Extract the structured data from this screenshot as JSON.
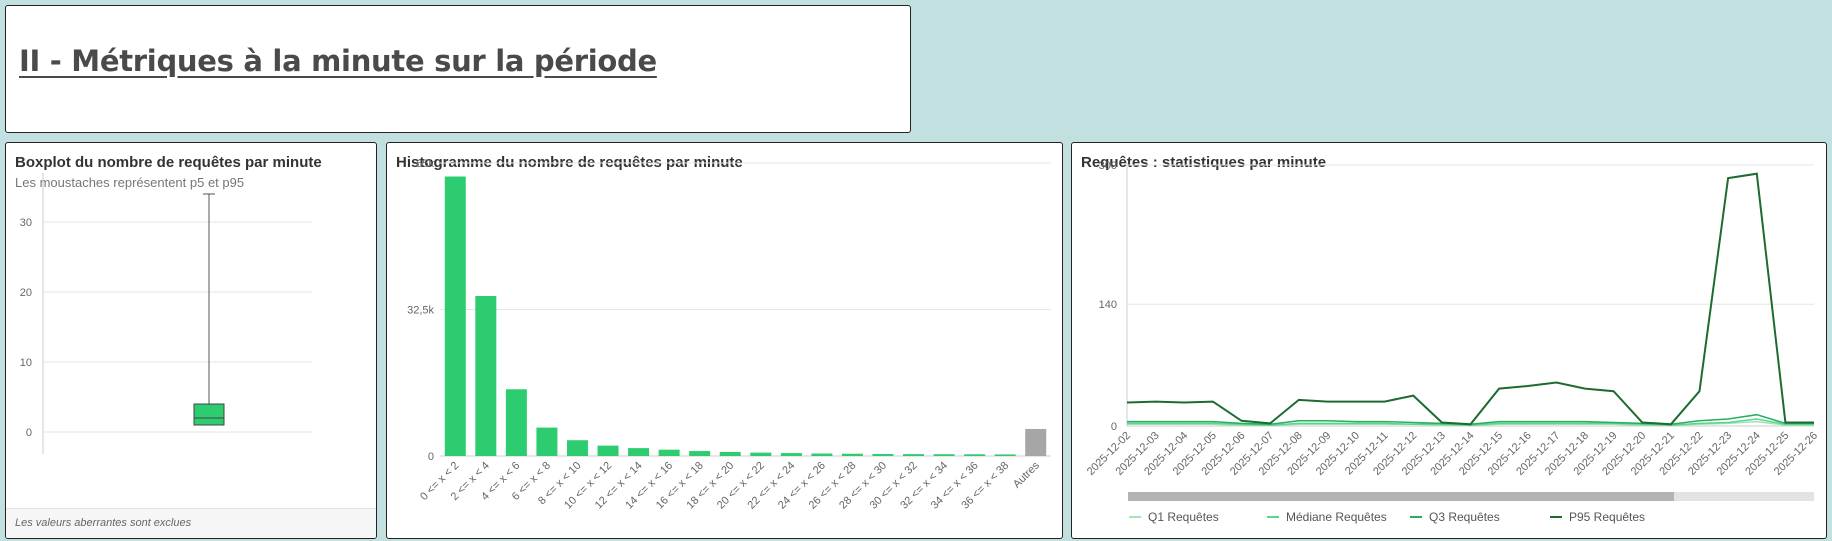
{
  "section": {
    "title": "II - Métriques à la minute sur la période"
  },
  "boxplot": {
    "title": "Boxplot du nombre de requêtes par minute",
    "subtitle": "Les moustaches représentent p5 et p95",
    "footer": "Les valeurs aberrantes sont exclues",
    "color": "#2ecc71",
    "chart_data": {
      "type": "boxplot",
      "y_ticks": [
        0,
        10,
        20,
        30
      ],
      "ylim": [
        -2,
        37
      ],
      "whisker_low": 1,
      "q1": 1,
      "median": 2,
      "q3": 4,
      "whisker_high": 34
    }
  },
  "histogram": {
    "title": "Histogramme du nombre de requêtes par minute",
    "color": "#2ecc71",
    "other_color": "#a6a6a6",
    "chart_data": {
      "type": "bar",
      "categories": [
        "0 <= x < 2",
        "2 <= x < 4",
        "4 <= x < 6",
        "6 <= x < 8",
        "8 <= x < 10",
        "10 <= x < 12",
        "12 <= x < 14",
        "14 <= x < 16",
        "16 <= x < 18",
        "18 <= x < 20",
        "20 <= x < 22",
        "22 <= x < 24",
        "24 <= x < 26",
        "26 <= x < 28",
        "28 <= x < 30",
        "30 <= x < 32",
        "32 <= x < 34",
        "34 <= x < 36",
        "36 <= x < 38",
        "Autres"
      ],
      "values": [
        62000,
        35500,
        14800,
        6300,
        3500,
        2300,
        1750,
        1400,
        1100,
        900,
        750,
        650,
        550,
        500,
        450,
        420,
        400,
        380,
        350,
        6000
      ],
      "y_ticks": [
        0,
        32500,
        65000
      ],
      "y_tick_labels": [
        "0",
        "32,5k",
        "65k"
      ],
      "ylim": [
        0,
        65000
      ]
    }
  },
  "stats": {
    "title": "Requêtes : statistiques par minute",
    "chart_data": {
      "type": "line",
      "x": [
        "2025-12-02",
        "2025-12-03",
        "2025-12-04",
        "2025-12-05",
        "2025-12-06",
        "2025-12-07",
        "2025-12-08",
        "2025-12-09",
        "2025-12-10",
        "2025-12-11",
        "2025-12-12",
        "2025-12-13",
        "2025-12-14",
        "2025-12-15",
        "2025-12-16",
        "2025-12-17",
        "2025-12-18",
        "2025-12-19",
        "2025-12-20",
        "2025-12-21",
        "2025-12-22",
        "2025-12-23",
        "2025-12-24",
        "2025-12-25",
        "2025-12-26"
      ],
      "y_ticks": [
        0,
        140,
        300
      ],
      "ylim": [
        0,
        300
      ],
      "series": [
        {
          "name": "Q1 Requêtes",
          "color": "#9ee6b4",
          "values": [
            2,
            2,
            2,
            2,
            1,
            1,
            2,
            2,
            2,
            2,
            2,
            1,
            1,
            2,
            2,
            2,
            2,
            2,
            1,
            1,
            2,
            3,
            5,
            1,
            1
          ]
        },
        {
          "name": "Médiane Requêtes",
          "color": "#58d68d",
          "values": [
            3,
            3,
            3,
            3,
            2,
            1,
            3,
            3,
            3,
            3,
            2,
            2,
            1,
            3,
            3,
            3,
            3,
            3,
            2,
            1,
            3,
            4,
            8,
            2,
            2
          ]
        },
        {
          "name": "Q3 Requêtes",
          "color": "#27ae60",
          "values": [
            5,
            5,
            5,
            5,
            3,
            2,
            6,
            6,
            5,
            5,
            4,
            3,
            2,
            5,
            5,
            5,
            5,
            4,
            3,
            2,
            6,
            8,
            13,
            3,
            3
          ]
        },
        {
          "name": "P95 Requêtes",
          "color": "#1e6b30",
          "values": [
            27,
            28,
            27,
            28,
            6,
            3,
            30,
            28,
            28,
            28,
            35,
            4,
            2,
            43,
            46,
            50,
            43,
            40,
            4,
            2,
            40,
            285,
            290,
            4,
            4
          ]
        }
      ]
    }
  }
}
